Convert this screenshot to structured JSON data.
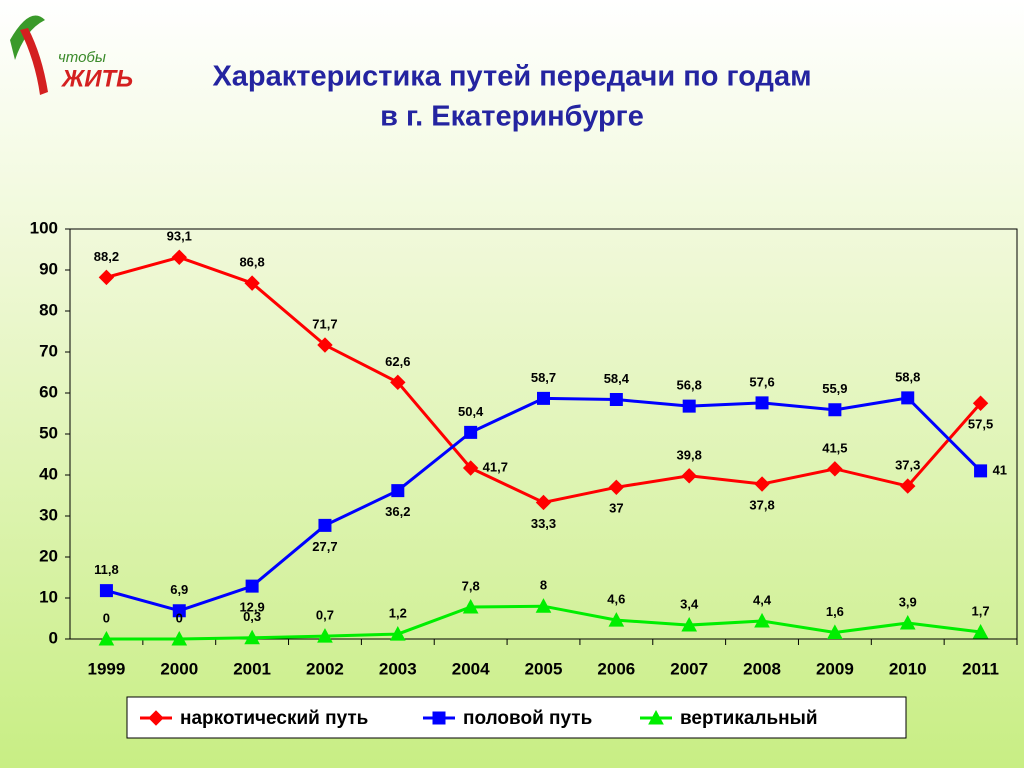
{
  "logo": {
    "small": "чтобы",
    "big": "ЖИТЬ"
  },
  "chart_data": {
    "type": "line",
    "title_lines": [
      "Характеристика путей передачи по годам",
      "в г. Екатеринбурге"
    ],
    "categories": [
      "1999",
      "2000",
      "2001",
      "2002",
      "2003",
      "2004",
      "2005",
      "2006",
      "2007",
      "2008",
      "2009",
      "2010",
      "2011"
    ],
    "series": [
      {
        "name": "наркотический путь",
        "color": "#ff0000",
        "marker": "diamond",
        "values": [
          88.2,
          93.1,
          86.8,
          71.7,
          62.6,
          41.7,
          33.3,
          37,
          39.8,
          37.8,
          41.5,
          37.3,
          57.5
        ],
        "value_labels": [
          "88,2",
          "93,1",
          "86,8",
          "71,7",
          "62,6",
          "41,7",
          "33,3",
          "37",
          "39,8",
          "37,8",
          "41,5",
          "37,3",
          "57,5"
        ]
      },
      {
        "name": "половой путь",
        "color": "#0000ff",
        "marker": "square",
        "values": [
          11.8,
          6.9,
          12.9,
          27.7,
          36.2,
          50.4,
          58.7,
          58.4,
          56.8,
          57.6,
          55.9,
          58.8,
          41
        ],
        "value_labels": [
          "11,8",
          "6,9",
          "12,9",
          "27,7",
          "36,2",
          "50,4",
          "58,7",
          "58,4",
          "56,8",
          "57,6",
          "55,9",
          "58,8",
          "41"
        ]
      },
      {
        "name": "вертикальный",
        "color": "#00ee00",
        "marker": "triangle",
        "values": [
          0,
          0,
          0.3,
          0.7,
          1.2,
          7.8,
          8,
          4.6,
          3.4,
          4.4,
          1.6,
          3.9,
          1.7
        ],
        "value_labels": [
          "0",
          "0",
          "0,3",
          "0,7",
          "1,2",
          "7,8",
          "8",
          "4,6",
          "3,4",
          "4,4",
          "1,6",
          "3,9",
          "1,7"
        ]
      }
    ],
    "ylim": [
      0,
      100
    ],
    "yticks": [
      0,
      10,
      20,
      30,
      40,
      50,
      60,
      70,
      80,
      90,
      100
    ],
    "grid": false,
    "legend": "bottom"
  }
}
